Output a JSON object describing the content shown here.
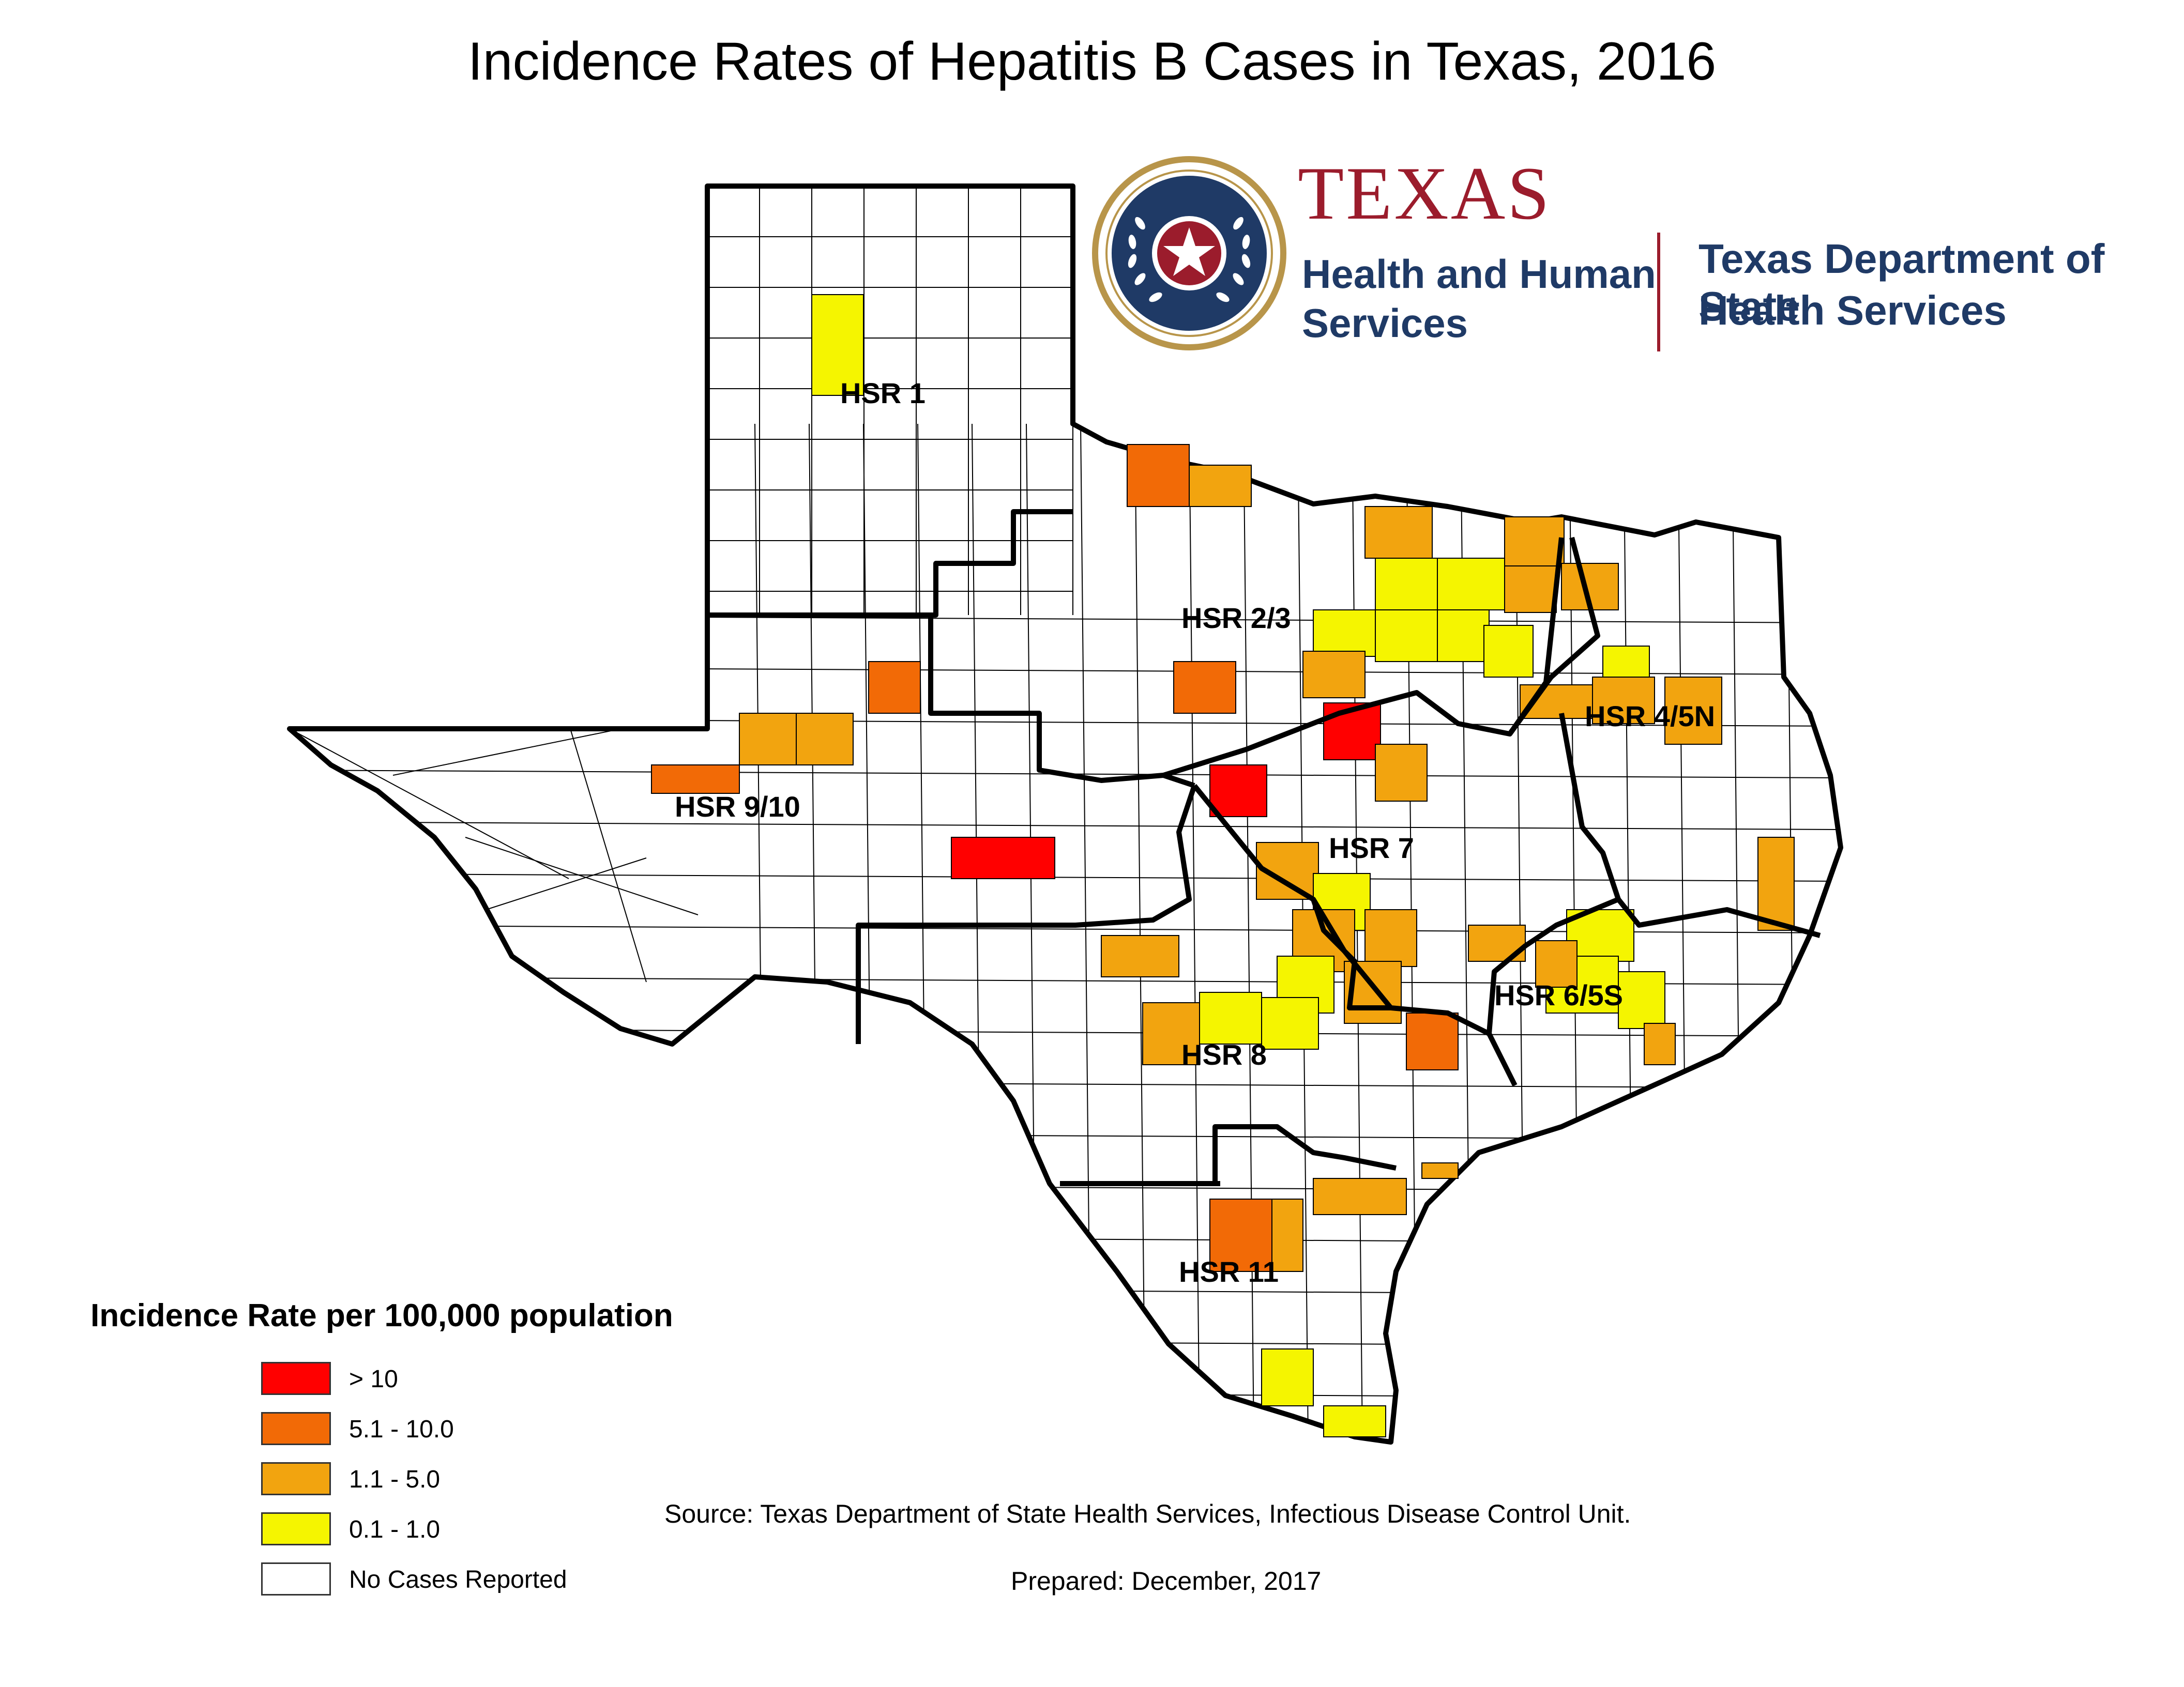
{
  "title": "Incidence Rates of Hepatitis B Cases in Texas, 2016",
  "logo": {
    "texas": "TEXAS",
    "hhs_line1": "Health and Human",
    "hhs_line2": "Services",
    "dshs_line1": "Texas Department of State",
    "dshs_line2": "Health Services",
    "colors": {
      "maroon": "#9b1c2c",
      "navy": "#1f3a66",
      "gold": "#b8954a"
    }
  },
  "map": {
    "regions": [
      "HSR 1",
      "HSR 2/3",
      "HSR 4/5N",
      "HSR 9/10",
      "HSR 7",
      "HSR 6/5S",
      "HSR 8",
      "HSR 11"
    ],
    "colors": {
      "gt10": "#ff0000",
      "r5_10": "#f26a06",
      "r1_5": "#f2a40f",
      "r0_1": "#f5f500",
      "none": "#ffffff"
    }
  },
  "legend": {
    "title": "Incidence Rate per 100,000 population",
    "items": [
      {
        "label": "> 10",
        "color": "#ff0000"
      },
      {
        "label": "5.1 - 10.0",
        "color": "#f26a06"
      },
      {
        "label": "1.1 - 5.0",
        "color": "#f2a40f"
      },
      {
        "label": "0.1 - 1.0",
        "color": "#f5f500"
      },
      {
        "label": "No Cases Reported",
        "color": "#ffffff"
      }
    ]
  },
  "source": "Source: Texas Department of State Health Services, Infectious Disease Control Unit.",
  "prepared": "Prepared: December, 2017"
}
